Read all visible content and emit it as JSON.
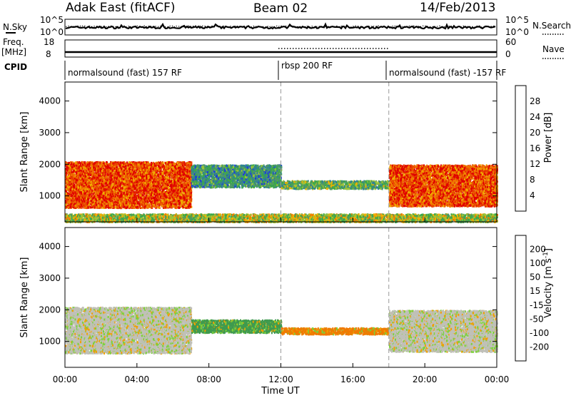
{
  "header": {
    "radar": "Adak East (fitACF)",
    "beam": "Beam 02",
    "date": "14/Feb/2013"
  },
  "noise_panel": {
    "left_label": "N.Sky",
    "right_label": "N.Search",
    "left_ticks": [
      "10^5",
      "10^0"
    ],
    "right_ticks": [
      "10^5",
      "10^0"
    ]
  },
  "freq_panel": {
    "left_label": "Freq.",
    "left_unit": "[MHz]",
    "right_label": "Nave",
    "left_ticks": [
      "18",
      "8"
    ],
    "right_ticks": [
      "60",
      "0"
    ]
  },
  "cpid_panel": {
    "label": "CPID",
    "segments": [
      {
        "text": "normalsound (fast) 157 RF",
        "start_hour": 0
      },
      {
        "text": "rbsp 200 RF",
        "start_hour": 12
      },
      {
        "text": "normalsound (fast) -157 RF",
        "start_hour": 18
      }
    ]
  },
  "colors": {
    "power_scale": [
      "#1f3fd6",
      "#2e7f9a",
      "#4f9a63",
      "#3aa84a",
      "#9cc43a",
      "#f0b000",
      "#f07a00",
      "#e84a00",
      "#e00000"
    ],
    "velocity_scale": [
      "#1f3fd6",
      "#2e6f7a",
      "#3f9a4f",
      "#7cd23a",
      "#c0c0b8",
      "#f0a000",
      "#f07a00",
      "#f04a00",
      "#e00000"
    ]
  },
  "chart_data": [
    {
      "type": "heatmap",
      "title": "",
      "xlabel": "Time UT",
      "ylabel": "Slant Range [km]",
      "x_range_hours": [
        0,
        24
      ],
      "xtick_labels": [
        "00:00",
        "04:00",
        "08:00",
        "12:00",
        "16:00",
        "20:00",
        "00:00"
      ],
      "ylim": [
        180,
        4600
      ],
      "ytick_labels": [
        "1000",
        "2000",
        "3000",
        "4000"
      ],
      "colorbar": {
        "label": "Power [dB]",
        "range": [
          0,
          32
        ],
        "tick_labels": [
          "4",
          "8",
          "12",
          "16",
          "20",
          "24",
          "28"
        ]
      },
      "features": [
        {
          "hours": [
            0,
            7
          ],
          "range_km": [
            650,
            2100
          ],
          "dominant_power_db": 28
        },
        {
          "hours": [
            7,
            12
          ],
          "range_km": [
            1300,
            2000
          ],
          "dominant_power_db": 8
        },
        {
          "hours": [
            12,
            18
          ],
          "range_km": [
            1250,
            1500
          ],
          "dominant_power_db": 12
        },
        {
          "hours": [
            18,
            24
          ],
          "range_km": [
            700,
            2000
          ],
          "dominant_power_db": 28
        },
        {
          "hours": [
            0,
            24
          ],
          "range_km": [
            200,
            450
          ],
          "dominant_power_db": 16
        }
      ]
    },
    {
      "type": "heatmap",
      "title": "",
      "xlabel": "Time UT",
      "ylabel": "Slant Range [km]",
      "x_range_hours": [
        0,
        24
      ],
      "xtick_labels": [
        "00:00",
        "04:00",
        "08:00",
        "12:00",
        "16:00",
        "20:00",
        "00:00"
      ],
      "ylim": [
        180,
        4600
      ],
      "ytick_labels": [
        "1000",
        "2000",
        "3000",
        "4000"
      ],
      "colorbar": {
        "label": "Velocity [m s^-1]",
        "range": [
          -250,
          250
        ],
        "tick_labels": [
          "200",
          "100",
          "50",
          "15",
          "-15",
          "-50",
          "-100",
          "-200"
        ]
      },
      "features": [
        {
          "hours": [
            0,
            7
          ],
          "range_km": [
            650,
            2100
          ],
          "dominant_velocity_ms": 0
        },
        {
          "hours": [
            7,
            12
          ],
          "range_km": [
            1300,
            1700
          ],
          "dominant_velocity_ms": 50
        },
        {
          "hours": [
            12,
            18
          ],
          "range_km": [
            1250,
            1450
          ],
          "dominant_velocity_ms": -50
        },
        {
          "hours": [
            18,
            24
          ],
          "range_km": [
            700,
            2000
          ],
          "dominant_velocity_ms": 0
        }
      ]
    }
  ]
}
